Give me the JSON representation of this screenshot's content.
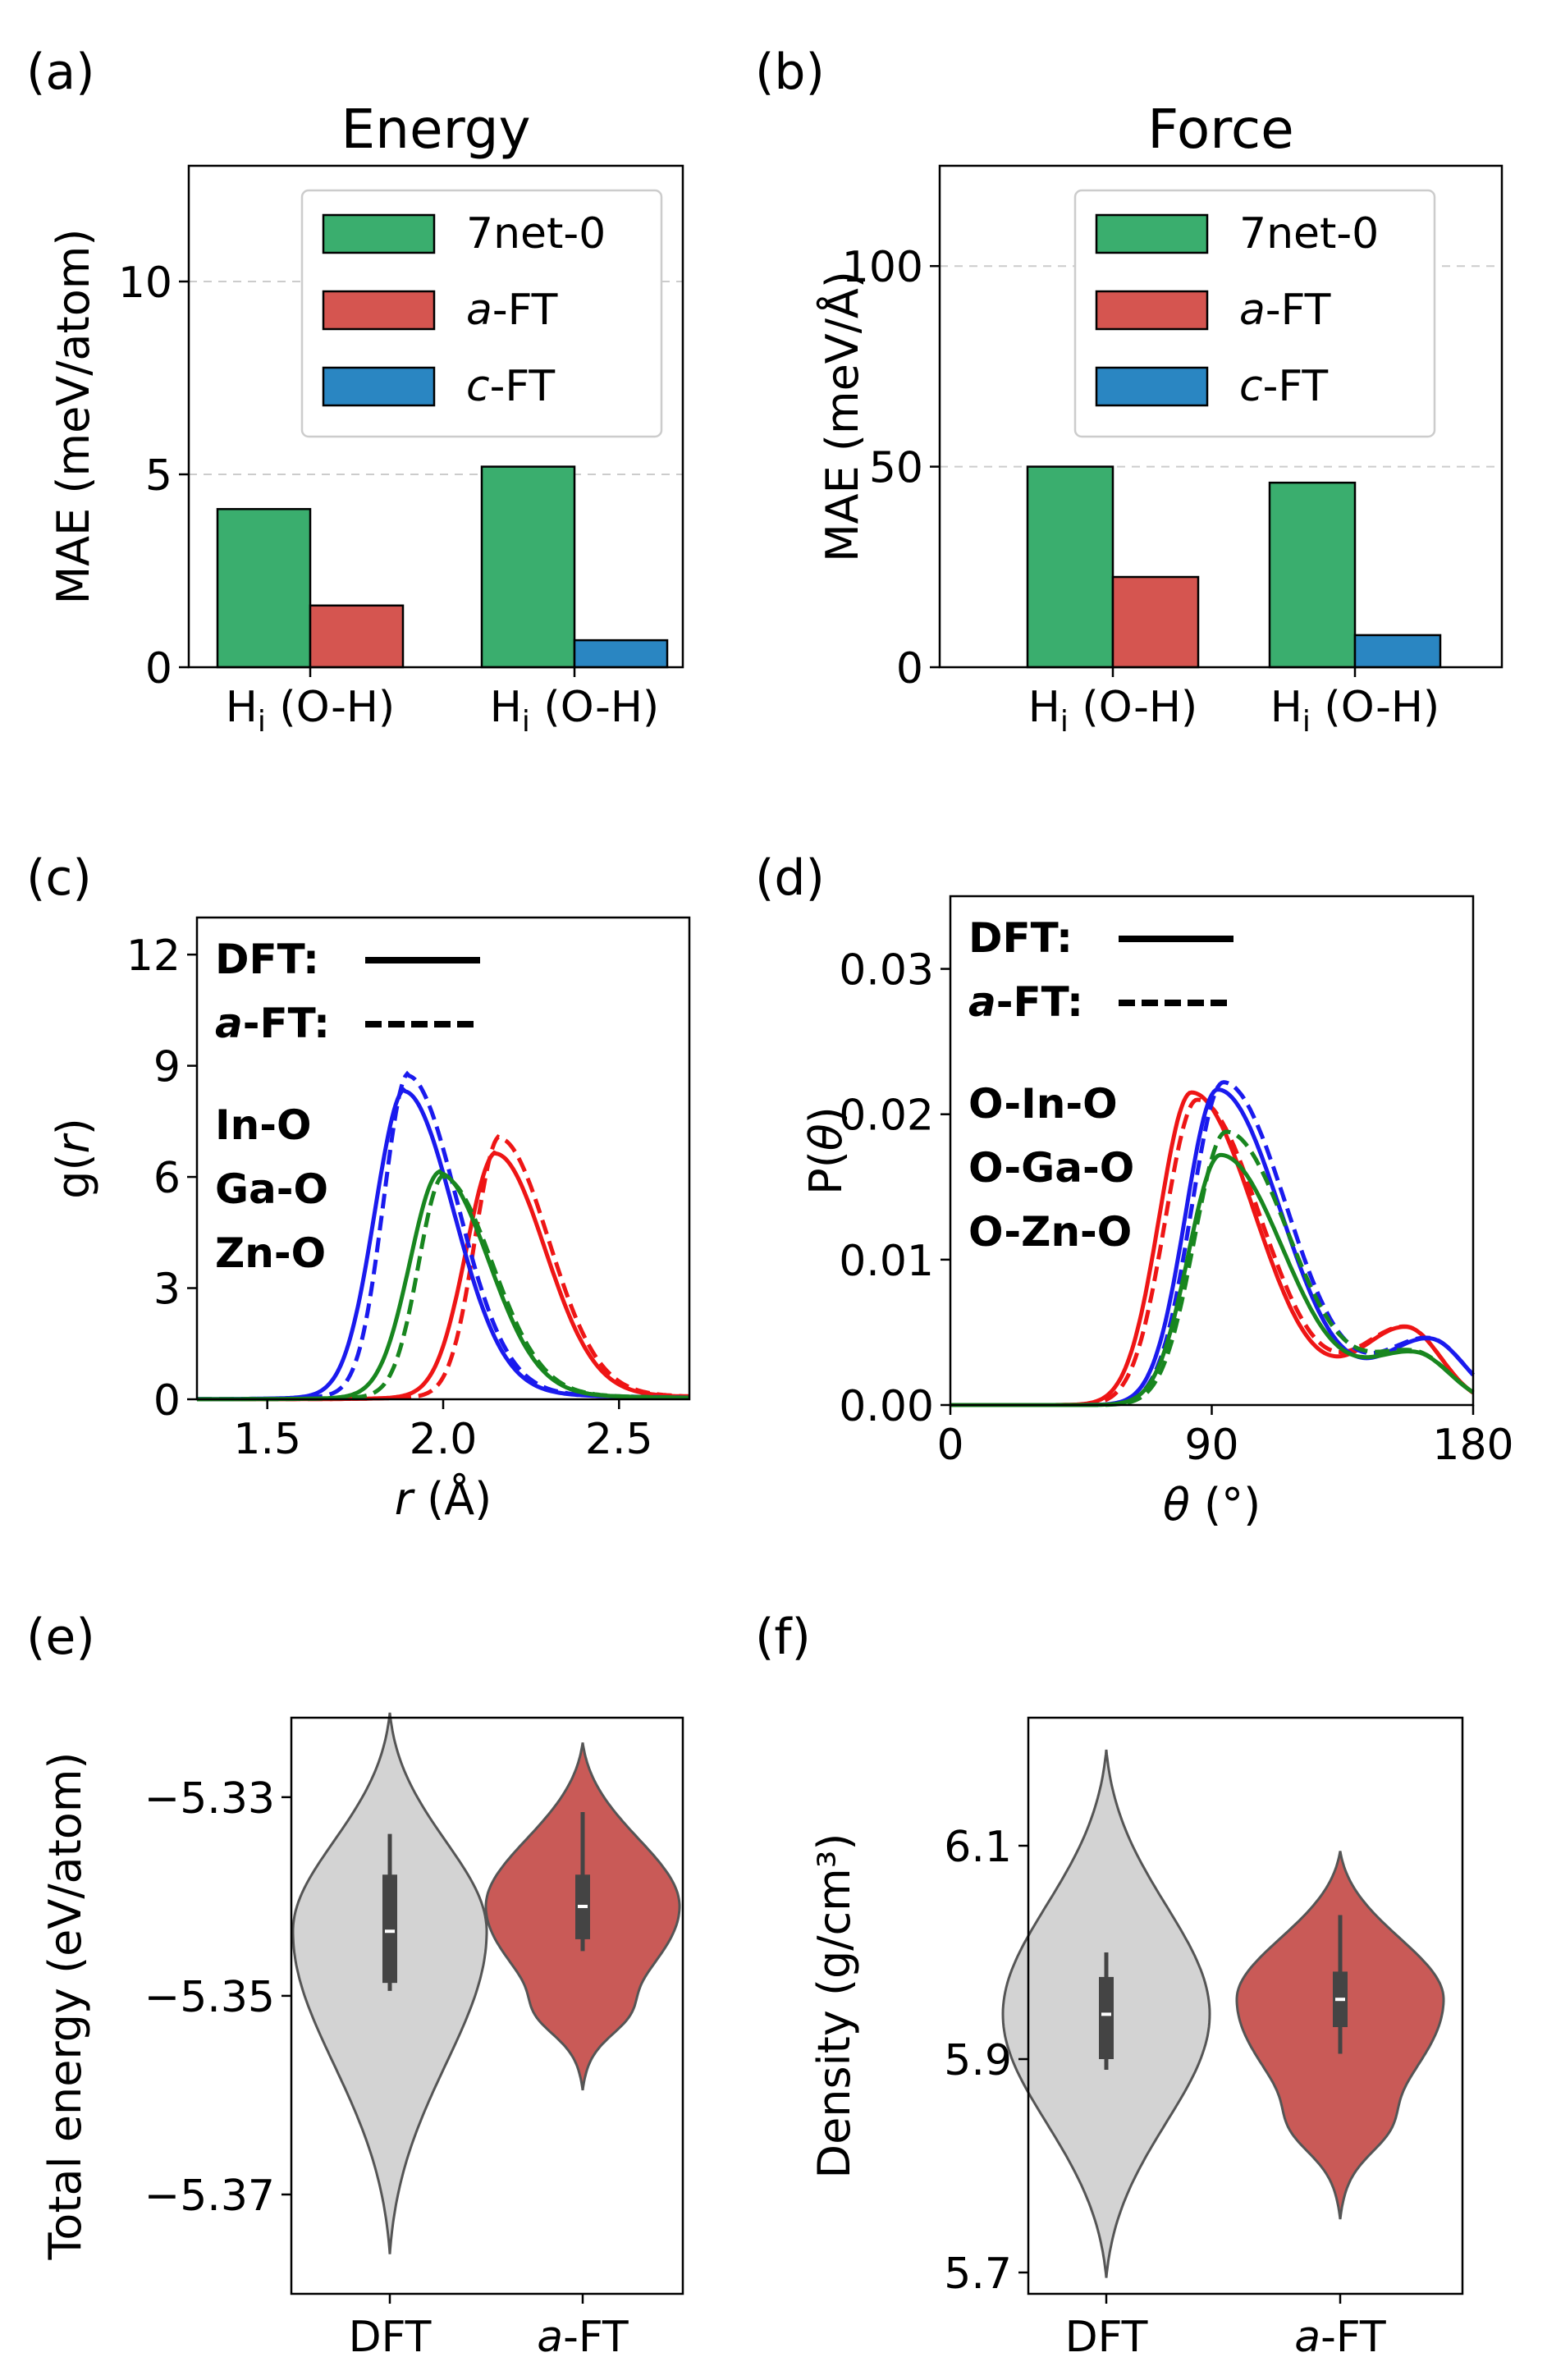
{
  "colors": {
    "green": "#3aae6e",
    "red": "#d55550",
    "blue": "#2a86c2",
    "line_red": "#ee1515",
    "line_blue": "#1a1aee",
    "line_green": "#18861f",
    "violin_gray": "#d3d3d3",
    "violin_red": "#c95a57"
  },
  "chart_data": [
    {
      "panel": "(a)",
      "type": "bar",
      "title": "Energy",
      "ylabel": "MAE (meV/atom)",
      "ylim": [
        0,
        13
      ],
      "yticks": [
        "0",
        "5",
        "10"
      ],
      "categories": [
        "Hi (O-H)",
        "Hi (O-H)"
      ],
      "category_main": "H",
      "category_sub": "i",
      "category_rest": " (O-H)",
      "series": [
        {
          "name": "7net-0",
          "values": [
            4.1,
            5.2
          ]
        },
        {
          "name": "a-FT",
          "values": [
            1.6,
            null
          ]
        },
        {
          "name": "c-FT",
          "values": [
            null,
            0.7
          ]
        }
      ],
      "legend": [
        {
          "prefix": "",
          "label": "7net-0"
        },
        {
          "prefix": "a",
          "label": "-FT"
        },
        {
          "prefix": "c",
          "label": "-FT"
        }
      ],
      "grid": "y dashed",
      "legend_position": "top-right"
    },
    {
      "panel": "(b)",
      "type": "bar",
      "title": "Force",
      "ylabel": "MAE (meV/Å)",
      "ylim": [
        0,
        125
      ],
      "yticks": [
        "0",
        "50",
        "100"
      ],
      "categories": [
        "Hi (O-H)",
        "Hi (O-H)"
      ],
      "category_main": "H",
      "category_sub": "i",
      "category_rest": " (O-H)",
      "series": [
        {
          "name": "7net-0",
          "values": [
            50,
            46
          ]
        },
        {
          "name": "a-FT",
          "values": [
            22.5,
            null
          ]
        },
        {
          "name": "c-FT",
          "values": [
            null,
            8
          ]
        }
      ],
      "legend": [
        {
          "prefix": "",
          "label": "7net-0"
        },
        {
          "prefix": "a",
          "label": "-FT"
        },
        {
          "prefix": "c",
          "label": "-FT"
        }
      ],
      "grid": "y dashed",
      "legend_position": "top-right"
    },
    {
      "panel": "(c)",
      "type": "line",
      "xlabel_var": "r",
      "xlabel_unit": " (Å)",
      "ylabel_pre": "g(",
      "ylabel_var": "r",
      "ylabel_post": ")",
      "xlim": [
        1.3,
        2.7
      ],
      "ylim": [
        0,
        13
      ],
      "xticks": [
        "1.5",
        "2.0",
        "2.5"
      ],
      "yticks": [
        "0",
        "3",
        "6",
        "9",
        "12"
      ],
      "style_legend": [
        {
          "prefix": "",
          "label": "DFT:",
          "style": "solid"
        },
        {
          "prefix": "a",
          "label": "-FT:",
          "style": "dashed"
        }
      ],
      "series": [
        {
          "name": "In-O",
          "peak_x": 2.15,
          "dft_peak": 6.3,
          "aft_peak": 6.7,
          "shift": 0.01
        },
        {
          "name": "Ga-O",
          "peak_x": 1.89,
          "dft_peak": 7.9,
          "aft_peak": 8.3,
          "shift": 0.01
        },
        {
          "name": "Zn-O",
          "peak_x": 1.99,
          "dft_peak": 5.8,
          "aft_peak": 5.7,
          "shift": 0.01
        }
      ]
    },
    {
      "panel": "(d)",
      "type": "line",
      "xlabel_var": "θ",
      "xlabel_unit": " (°)",
      "ylabel_pre": "P(",
      "ylabel_var": "θ",
      "ylabel_post": ")",
      "xlim": [
        0,
        180
      ],
      "ylim": [
        0,
        0.035
      ],
      "xticks": [
        "0",
        "90",
        "180"
      ],
      "yticks": [
        "0.00",
        "0.01",
        "0.02",
        "0.03"
      ],
      "style_legend": [
        {
          "prefix": "",
          "label": "DFT:",
          "style": "solid"
        },
        {
          "prefix": "a",
          "label": "-FT:",
          "style": "dashed"
        }
      ],
      "series": [
        {
          "name": "O-In-O",
          "peak_x": 83,
          "dft_peak": 0.0215,
          "aft_peak": 0.021,
          "second_peak_x": 157,
          "second_peak": 0.0053
        },
        {
          "name": "O-Ga-O",
          "peak_x": 92,
          "dft_peak": 0.0217,
          "aft_peak": 0.0222,
          "second_peak_x": 165,
          "second_peak": 0.0045
        },
        {
          "name": "O-Zn-O",
          "peak_x": 93,
          "dft_peak": 0.0172,
          "aft_peak": 0.0188,
          "second_peak_x": 160,
          "second_peak": 0.0035
        }
      ]
    },
    {
      "panel": "(e)",
      "type": "violin",
      "ylabel": "Total energy (eV/atom)",
      "ylim": [
        -5.38,
        -5.322
      ],
      "yticks": [
        "−5.33",
        "−5.35",
        "−5.37"
      ],
      "ytick_values": [
        -5.33,
        -5.35,
        -5.37
      ],
      "categories": [
        {
          "prefix": "",
          "label": "DFT"
        },
        {
          "prefix": "a",
          "label": "-FT"
        }
      ],
      "violins": [
        {
          "name": "DFT",
          "min": -5.376,
          "max": -5.3215,
          "median": -5.3435,
          "q1": -5.3487,
          "q3": -5.3378,
          "whisker_low": -5.3495,
          "whisker_high": -5.3337
        },
        {
          "name": "a-FT",
          "min": -5.3595,
          "max": -5.3245,
          "median": -5.341,
          "q1": -5.3443,
          "q3": -5.3378,
          "whisker_low": -5.3455,
          "whisker_high": -5.3315
        }
      ]
    },
    {
      "panel": "(f)",
      "type": "violin",
      "ylabel": "Density (g/cm³)",
      "ylim": [
        5.68,
        6.22
      ],
      "yticks": [
        "5.7",
        "5.9",
        "6.1"
      ],
      "ytick_values": [
        5.7,
        5.9,
        6.1
      ],
      "categories": [
        {
          "prefix": "",
          "label": "DFT"
        },
        {
          "prefix": "a",
          "label": "-FT"
        }
      ],
      "violins": [
        {
          "name": "DFT",
          "min": 5.695,
          "max": 6.19,
          "median": 5.942,
          "q1": 5.9,
          "q3": 5.977,
          "whisker_low": 5.89,
          "whisker_high": 6.0
        },
        {
          "name": "a-FT",
          "min": 5.75,
          "max": 6.095,
          "median": 5.956,
          "q1": 5.93,
          "q3": 5.982,
          "whisker_low": 5.905,
          "whisker_high": 6.035
        }
      ]
    }
  ]
}
